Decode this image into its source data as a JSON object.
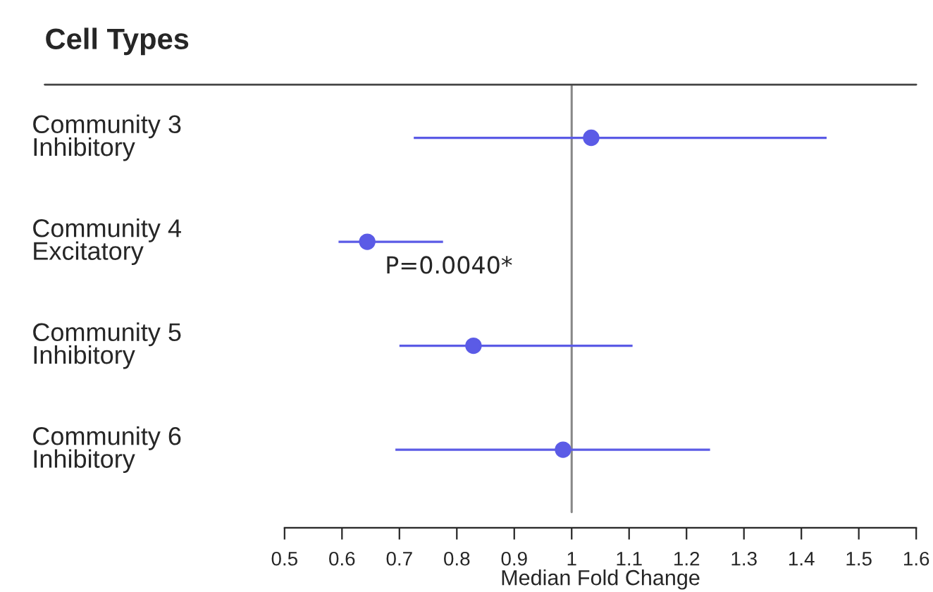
{
  "chart_data": {
    "type": "scatter",
    "orientation": "horizontal",
    "title": "Cell Types",
    "xlabel": "Median Fold Change",
    "categories": [
      "Community 3\nInhibitory",
      "Community 4\nExcitatory",
      "Community 5\nInhibitory",
      "Community 6\nInhibitory"
    ],
    "values": [
      1.034,
      0.644,
      0.829,
      0.985
    ],
    "errors": [
      [
        0.725,
        1.444
      ],
      [
        0.594,
        0.776
      ],
      [
        0.7,
        1.106
      ],
      [
        0.693,
        1.241
      ]
    ],
    "color": "#5b5be6",
    "xlim": [
      0.5,
      1.6
    ],
    "xticks": [
      0.5,
      0.6,
      0.7,
      0.8,
      0.9,
      1,
      1.1,
      1.2,
      1.3,
      1.4,
      1.5,
      1.6
    ],
    "ref_lines": [
      {
        "axis": "x",
        "value": 1,
        "color": "#888888"
      }
    ],
    "annotations": [
      "P=0.0040*"
    ],
    "marker": "circle",
    "grid": false,
    "legend": false
  }
}
